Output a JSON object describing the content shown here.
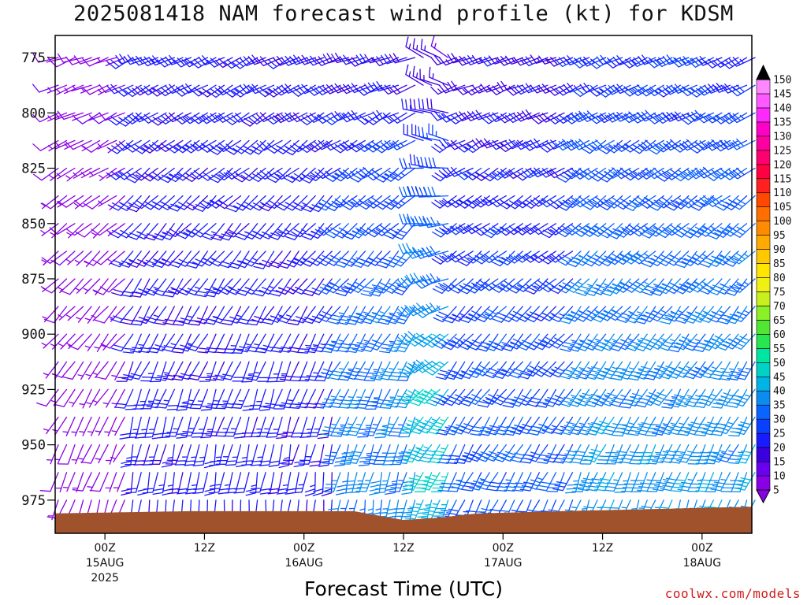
{
  "title": "2025081418 NAM forecast wind profile (kt) for KDSM",
  "xlabel": "Forecast Time (UTC)",
  "credit": "coolwx.com/models",
  "colors": {
    "ground": "#a0522d",
    "scale": [
      "#8a00e6",
      "#6a00f0",
      "#3c00e0",
      "#1a1aff",
      "#0a40ff",
      "#0a64ff",
      "#0a8cf0",
      "#00b4e6",
      "#00d2c8",
      "#00e6a0",
      "#28e650",
      "#50e632",
      "#8cf028",
      "#c8f01e",
      "#f0f014",
      "#ffe600",
      "#ffc800",
      "#ffaa00",
      "#ff8c00",
      "#ff6e00",
      "#ff4800",
      "#ff2020",
      "#ff0040",
      "#ff0070",
      "#ff00a0",
      "#ff00c8",
      "#ff28ff",
      "#ff5aff",
      "#ff88ff",
      "#000000"
    ]
  },
  "chart_data": {
    "type": "wind-barb-time-height",
    "title": "2025081418 NAM forecast wind profile (kt) for KDSM",
    "xlabel": "Forecast Time (UTC)",
    "ylabel": "",
    "y_axis": {
      "units": "hPa",
      "inverted": true,
      "range": [
        990,
        765
      ],
      "ticks": [
        775,
        800,
        825,
        850,
        875,
        900,
        925,
        950,
        975
      ]
    },
    "x_axis": {
      "range_hours": [
        -6,
        78
      ],
      "ticks": [
        {
          "hour": 0,
          "label": "00Z",
          "sub": "15AUG",
          "sub2": "2025"
        },
        {
          "hour": 12,
          "label": "12Z",
          "sub": "",
          "sub2": ""
        },
        {
          "hour": 24,
          "label": "00Z",
          "sub": "16AUG",
          "sub2": ""
        },
        {
          "hour": 36,
          "label": "12Z",
          "sub": "",
          "sub2": ""
        },
        {
          "hour": 48,
          "label": "00Z",
          "sub": "17AUG",
          "sub2": ""
        },
        {
          "hour": 60,
          "label": "12Z",
          "sub": "",
          "sub2": ""
        },
        {
          "hour": 72,
          "label": "00Z",
          "sub": "18AUG",
          "sub2": ""
        }
      ]
    },
    "colorbar": {
      "units": "kt",
      "levels": [
        5,
        10,
        15,
        20,
        25,
        30,
        35,
        40,
        45,
        50,
        55,
        60,
        65,
        70,
        75,
        80,
        85,
        90,
        95,
        100,
        105,
        110,
        115,
        120,
        125,
        130,
        135,
        140,
        145,
        150
      ]
    },
    "barb_time_step_hours": 1,
    "barb_pressure_levels": [
      775,
      787.5,
      800,
      812.5,
      825,
      837.5,
      850,
      862.5,
      875,
      887.5,
      900,
      912.5,
      925,
      937.5,
      950,
      962.5,
      975
    ],
    "wind_regimes": [
      {
        "hours": [
          -6,
          2
        ],
        "low_dir_deg": 200,
        "low_speed_kt": 6,
        "high_dir_deg": 250,
        "high_speed_kt": 8
      },
      {
        "hours": [
          3,
          27
        ],
        "low_dir_deg": 185,
        "low_speed_kt": 22,
        "high_dir_deg": 245,
        "high_speed_kt": 22
      },
      {
        "hours": [
          28,
          37
        ],
        "low_dir_deg": 190,
        "low_speed_kt": 36,
        "high_dir_deg": 250,
        "high_speed_kt": 20
      },
      {
        "hours": [
          38,
          41
        ],
        "low_dir_deg": 200,
        "low_speed_kt": 45,
        "high_dir_deg": 300,
        "high_speed_kt": 15
      },
      {
        "hours": [
          42,
          56
        ],
        "low_dir_deg": 205,
        "low_speed_kt": 30,
        "high_dir_deg": 250,
        "high_speed_kt": 18
      },
      {
        "hours": [
          57,
          78
        ],
        "low_dir_deg": 200,
        "low_speed_kt": 38,
        "high_dir_deg": 245,
        "high_speed_kt": 24
      }
    ],
    "ground_pressure_hpa": [
      {
        "hour": -6,
        "p": 981
      },
      {
        "hour": 10,
        "p": 980
      },
      {
        "hour": 30,
        "p": 980
      },
      {
        "hour": 36,
        "p": 984
      },
      {
        "hour": 40,
        "p": 983
      },
      {
        "hour": 45,
        "p": 981
      },
      {
        "hour": 55,
        "p": 980
      },
      {
        "hour": 78,
        "p": 978
      }
    ]
  }
}
